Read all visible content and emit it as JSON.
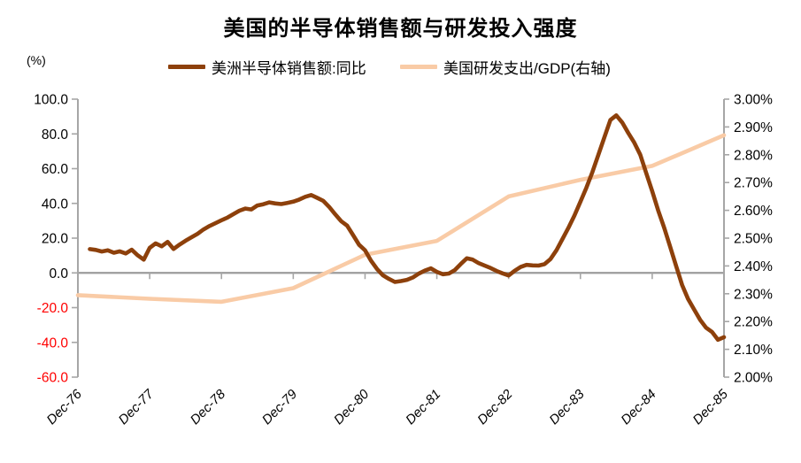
{
  "title": "美国的半导体销售额与研发投入强度",
  "unit_label": "(%)",
  "legend": {
    "series1_label": "美洲半导体销售额:同比",
    "series2_label": "美国研发支出/GDP(右轴)"
  },
  "colors": {
    "series1": "#8d400b",
    "series2": "#f9cba6",
    "axis_gray": "#a6a6a6",
    "zero_line_gray": "#9b9b9b",
    "tick_label_positive": "#000000",
    "tick_label_negative": "#ff0000"
  },
  "chart_data": {
    "type": "line",
    "title": "美国的半导体销售额与研发投入强度",
    "x_categories": [
      "Dec-76",
      "Dec-77",
      "Dec-78",
      "Dec-79",
      "Dec-80",
      "Dec-81",
      "Dec-82",
      "Dec-83",
      "Dec-84",
      "Dec-85"
    ],
    "left_axis": {
      "label": "(%)",
      "min": -60,
      "max": 100,
      "tick_values": [
        100,
        80,
        60,
        40,
        20,
        0,
        -20,
        -40,
        -60
      ],
      "tick_labels": [
        "100.0",
        "80.0",
        "60.0",
        "40.0",
        "20.0",
        "0.0",
        "-20.0",
        "-40.0",
        "-60.0"
      ]
    },
    "right_axis": {
      "min": 2.0,
      "max": 3.0,
      "tick_values": [
        3.0,
        2.9,
        2.8,
        2.7,
        2.6,
        2.5,
        2.4,
        2.3,
        2.2,
        2.1,
        2.0
      ],
      "tick_labels": [
        "3.00%",
        "2.90%",
        "2.80%",
        "2.70%",
        "2.60%",
        "2.50%",
        "2.40%",
        "2.30%",
        "2.20%",
        "2.10%",
        "2.00%"
      ]
    },
    "zero_line_value": 0,
    "grid": "none",
    "legend_position": "top",
    "series": [
      {
        "name": "美洲半导体销售额:同比",
        "axis": "left",
        "frequency": "monthly",
        "start_category": "Dec-76",
        "values": [
          null,
          null,
          13.7,
          13.2,
          12.3,
          13.0,
          11.6,
          12.4,
          11.2,
          13.3,
          10.1,
          7.6,
          14.4,
          17.0,
          15.3,
          17.8,
          13.8,
          16.3,
          18.5,
          20.5,
          22.5,
          25.0,
          27.0,
          28.6,
          30.3,
          31.8,
          33.8,
          35.8,
          37.0,
          36.5,
          38.8,
          39.5,
          40.6,
          40.0,
          39.6,
          40.3,
          41.0,
          42.2,
          43.8,
          44.8,
          43.2,
          41.5,
          38.0,
          33.8,
          29.8,
          27.2,
          21.8,
          16.2,
          13.0,
          7.0,
          2.2,
          -1.4,
          -3.5,
          -5.2,
          -4.7,
          -4.0,
          -2.6,
          -0.4,
          1.3,
          2.6,
          0.6,
          -0.8,
          -0.4,
          1.6,
          5.1,
          8.4,
          7.6,
          5.6,
          4.2,
          2.8,
          1.1,
          -0.3,
          -1.5,
          1.2,
          3.4,
          4.6,
          4.3,
          4.2,
          5.0,
          8.0,
          13.0,
          19.5,
          26.0,
          33.0,
          41.0,
          49.0,
          58.0,
          68.0,
          78.0,
          88.0,
          90.7,
          86.5,
          80.5,
          75.0,
          68.0,
          57.5,
          47.0,
          36.0,
          26.0,
          15.0,
          4.0,
          -7.0,
          -15.0,
          -21.0,
          -27.0,
          -31.5,
          -34.0,
          -38.5,
          -37.0
        ]
      },
      {
        "name": "美国研发支出/GDP(右轴)",
        "axis": "right",
        "frequency": "annual",
        "values": [
          2.295,
          2.282,
          2.271,
          2.32,
          2.44,
          2.49,
          2.65,
          2.71,
          2.76,
          2.87
        ]
      }
    ]
  }
}
